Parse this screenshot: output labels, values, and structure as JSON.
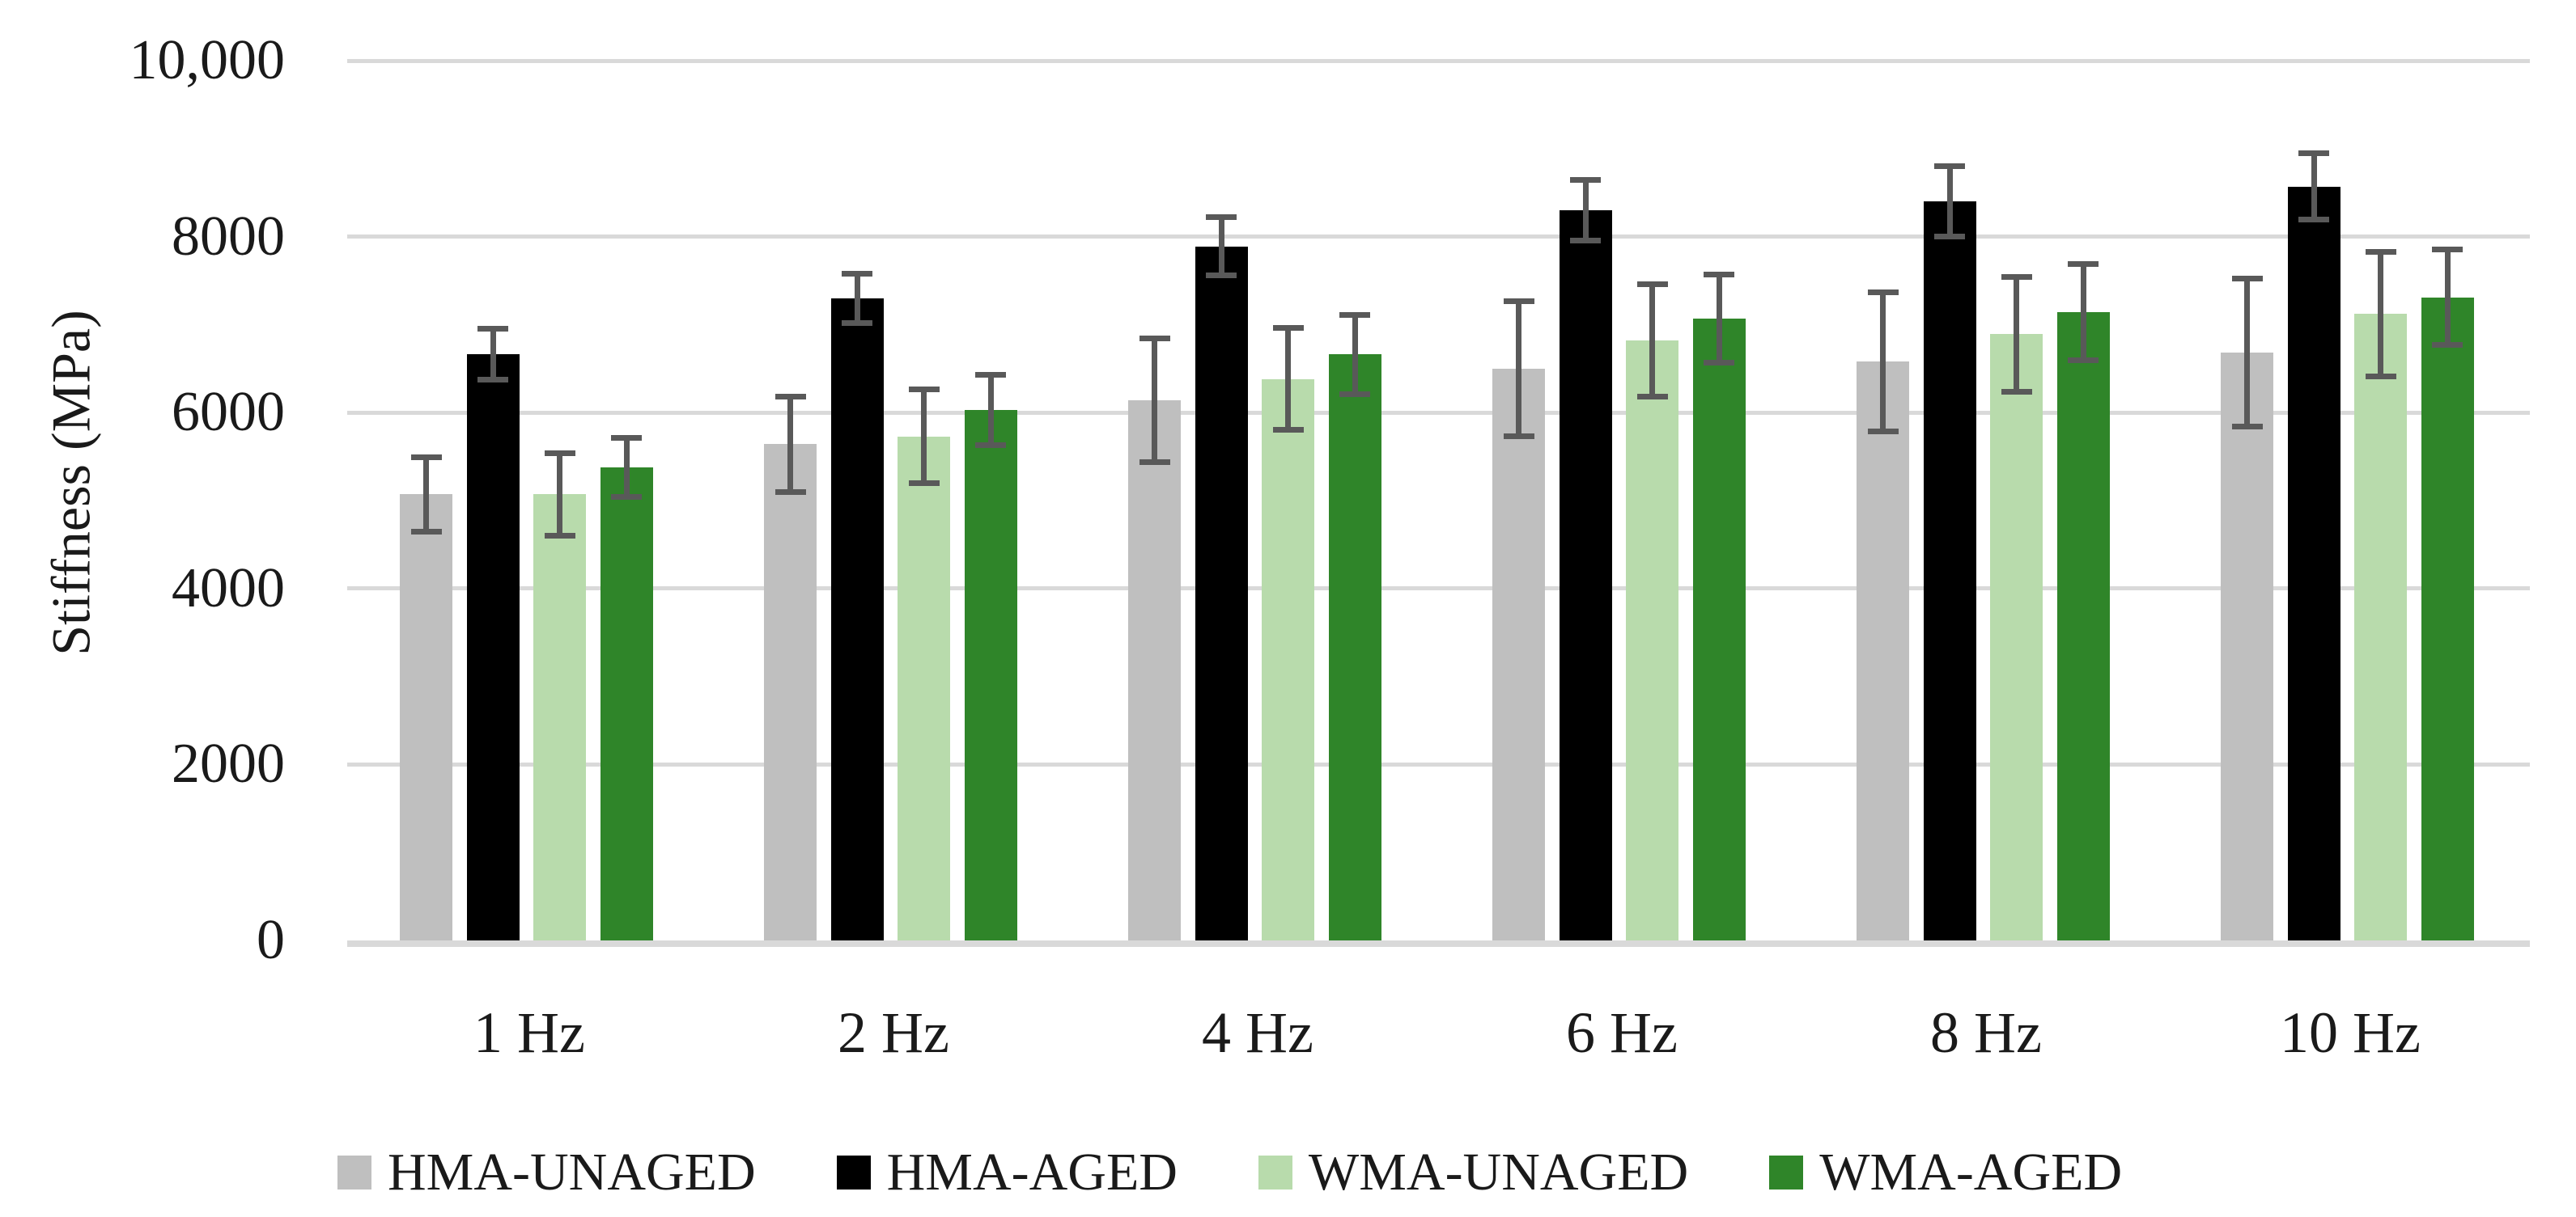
{
  "chart_data": {
    "type": "bar",
    "title": "",
    "xlabel": "",
    "ylabel": "Stiffness (MPa)",
    "categories": [
      "1 Hz",
      "2 Hz",
      "4 Hz",
      "6 Hz",
      "8 Hz",
      "10 Hz"
    ],
    "series": [
      {
        "name": "HMA-UNAGED",
        "color": "#BFBFBF",
        "values": [
          5070,
          5640,
          6140,
          6500,
          6580,
          6680
        ],
        "errors": [
          420,
          545,
          705,
          770,
          790,
          840
        ]
      },
      {
        "name": "HMA-AGED",
        "color": "#000000",
        "values": [
          6660,
          7300,
          7890,
          8300,
          8400,
          8570
        ],
        "errors": [
          290,
          280,
          330,
          345,
          400,
          380
        ]
      },
      {
        "name": "WMA-UNAGED",
        "color": "#B8DBAC",
        "values": [
          5070,
          5730,
          6380,
          6820,
          6890,
          7120
        ],
        "errors": [
          470,
          530,
          580,
          635,
          650,
          705
        ]
      },
      {
        "name": "WMA-AGED",
        "color": "#2F8529",
        "values": [
          5380,
          6030,
          6660,
          7070,
          7140,
          7310
        ],
        "errors": [
          335,
          400,
          450,
          500,
          545,
          545
        ]
      }
    ],
    "ylim": [
      0,
      10000
    ],
    "ytick_step": 2000,
    "ytick_labels": [
      "0",
      "2000",
      "4000",
      "6000",
      "8000",
      "10,000"
    ],
    "grid": "horizontal-only",
    "legend_position": "bottom",
    "colors": {
      "gridline": "#D9D9D9",
      "baseline": "#D9D9D9",
      "error_bar": "#595959",
      "text": "#1a1a1a",
      "background": "#FFFFFF"
    }
  }
}
